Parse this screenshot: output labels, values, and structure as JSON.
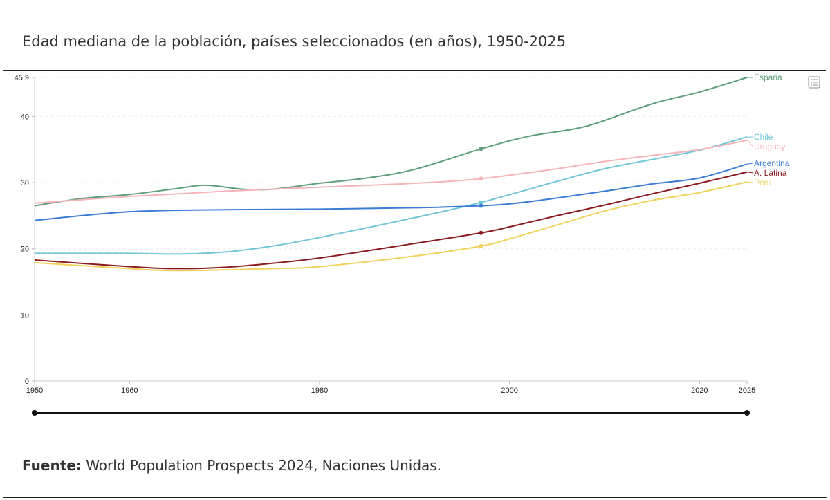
{
  "title": "Edad mediana de la población, países seleccionados (en años), 1950-2025",
  "footer": {
    "label": "Fuente:",
    "text": " World Population Prospects 2024, Naciones Unidas."
  },
  "chart_data": {
    "type": "line",
    "title": "Edad mediana de la población, países seleccionados (en años), 1950-2025",
    "xlim": [
      1950,
      2025
    ],
    "ylim": [
      0,
      45.9
    ],
    "x_ticks": [
      "1950",
      "1960",
      "1980",
      "2000",
      "2020",
      "2025"
    ],
    "y_ticks": [
      "0",
      "10",
      "20",
      "30",
      "40",
      "45,9"
    ],
    "grid": "horizontal dashed",
    "legend": "labels at line ends (right)",
    "hover_year": 1997,
    "series": [
      {
        "name": "España",
        "color": "#5f9e7c",
        "x": [
          1950,
          1955,
          1960,
          1965,
          1968,
          1972,
          1975,
          1980,
          1985,
          1990,
          1997,
          2002,
          2008,
          2015,
          2020,
          2025
        ],
        "values": [
          26.5,
          27.6,
          28.2,
          29.1,
          29.6,
          29.0,
          29.0,
          29.9,
          30.7,
          32.0,
          35.1,
          37.0,
          38.5,
          41.9,
          43.7,
          45.9
        ]
      },
      {
        "name": "Chile",
        "color": "#70c6d8",
        "x": [
          1950,
          1960,
          1965,
          1970,
          1975,
          1980,
          1990,
          1997,
          2005,
          2010,
          2015,
          2020,
          2025
        ],
        "values": [
          19.3,
          19.3,
          19.2,
          19.5,
          20.4,
          21.7,
          24.7,
          27.0,
          30.2,
          32.1,
          33.5,
          34.9,
          36.9
        ]
      },
      {
        "name": "Uruguay",
        "color": "#f5b3ba",
        "x": [
          1950,
          1960,
          1970,
          1980,
          1990,
          1997,
          2005,
          2010,
          2015,
          2020,
          2025
        ],
        "values": [
          26.9,
          27.9,
          28.7,
          29.3,
          29.9,
          30.6,
          32.1,
          33.2,
          34.1,
          35.0,
          36.4
        ]
      },
      {
        "name": "Argentina",
        "color": "#3b7bd3",
        "x": [
          1950,
          1960,
          1970,
          1980,
          1990,
          1997,
          2002,
          2010,
          2015,
          2020,
          2025
        ],
        "values": [
          24.3,
          25.6,
          25.9,
          26.0,
          26.2,
          26.5,
          27.1,
          28.7,
          29.8,
          30.7,
          32.8
        ]
      },
      {
        "name": "A. Latina",
        "color": "#8b1a1f",
        "x": [
          1950,
          1960,
          1965,
          1970,
          1975,
          1980,
          1990,
          1997,
          2000,
          2005,
          2010,
          2015,
          2020,
          2025
        ],
        "values": [
          18.3,
          17.3,
          17.0,
          17.2,
          17.8,
          18.6,
          20.8,
          22.4,
          23.3,
          25.0,
          26.6,
          28.3,
          29.9,
          31.6
        ]
      },
      {
        "name": "Perú",
        "color": "#efd35c",
        "x": [
          1950,
          1960,
          1965,
          1975,
          1980,
          1990,
          1997,
          2000,
          2005,
          2010,
          2015,
          2020,
          2025
        ],
        "values": [
          17.9,
          17.0,
          16.7,
          17.0,
          17.3,
          18.9,
          20.4,
          21.5,
          23.6,
          25.7,
          27.3,
          28.5,
          30.1
        ]
      }
    ]
  }
}
